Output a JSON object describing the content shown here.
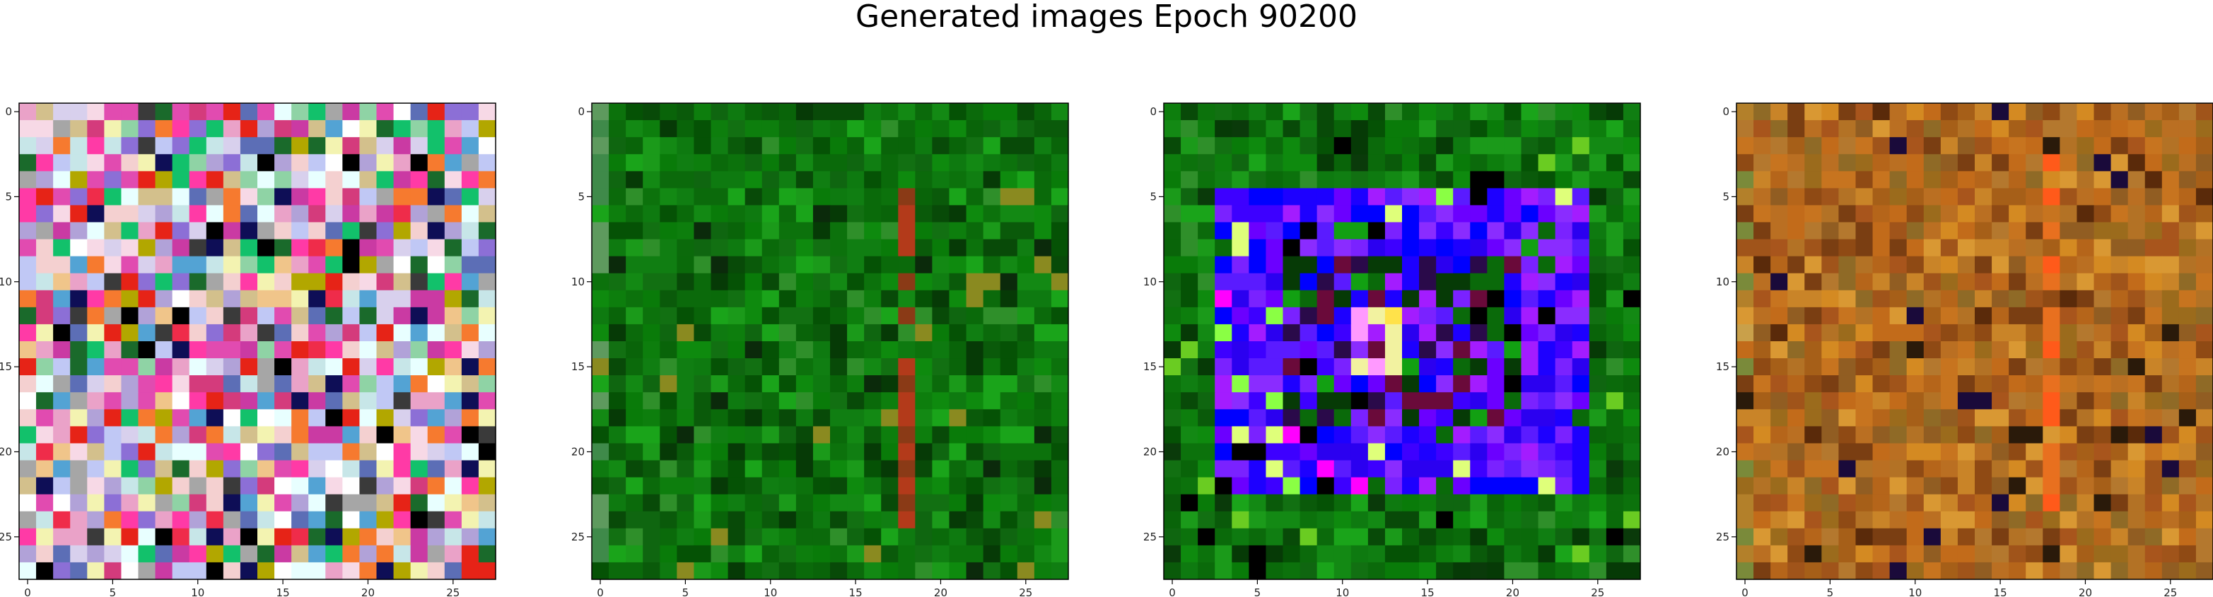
{
  "figure": {
    "title": "Generated images Epoch 90200"
  },
  "palettes": {
    "pastel": [
      "#f7d9e6",
      "#c7e6e8",
      "#d3c08c",
      "#8c6fd6",
      "#e14bb0",
      "#f3f3b1",
      "#5c6eb6",
      "#d8d0ed",
      "#eaa2c8",
      "#ef2c4a",
      "#a6a6a6",
      "#e62317",
      "#ffffff",
      "#0e0e56",
      "#b2a700",
      "#3a3a3a",
      "#8fd3a5",
      "#f0c58a",
      "#53a3d4",
      "#ca3aa3",
      "#f67a2f",
      "#e8ffff",
      "#000000",
      "#12c16b",
      "#d43b7c",
      "#1a6a2b",
      "#b1a2d8",
      "#ff3aa6",
      "#c0c8f5",
      "#f4d0d0"
    ],
    "green": [
      "#0b6a0b",
      "#096409",
      "#0e7a10",
      "#0a5a0a",
      "#107e12",
      "#055205",
      "#138914",
      "#0c720c",
      "#1b9a1a",
      "#084a08",
      "#127012",
      "#0a6a0a",
      "#0d7e0d",
      "#0f6610",
      "#1aa41a",
      "#063a06",
      "#097b09",
      "#0e8a0e",
      "#2f8f2a"
    ],
    "purple": [
      "#1d00ff",
      "#0000ff",
      "#6b00ff",
      "#5a1bff",
      "#8a2cff",
      "#3d00ff",
      "#7a22ff",
      "#2b00f0",
      "#a31cff"
    ],
    "orange": [
      "#b5651a",
      "#a0541a",
      "#c7741f",
      "#8f4a14",
      "#d48a22",
      "#9b6b1c",
      "#b37225",
      "#a65f18",
      "#c98428",
      "#7a3e12",
      "#b4782e",
      "#8f6a26",
      "#a8551c",
      "#c26b1a",
      "#915d22",
      "#ba6f22",
      "#d99833"
    ]
  },
  "chart_data": [
    {
      "type": "heatmap",
      "pattern": "pastel-noise",
      "grid": {
        "rows": 28,
        "cols": 28
      },
      "xlim": [
        -0.5,
        27.5
      ],
      "ylim": [
        27.5,
        -0.5
      ],
      "xticks": [
        0,
        5,
        10,
        15,
        20,
        25
      ],
      "yticks": [
        0,
        5,
        10,
        15,
        20,
        25
      ]
    },
    {
      "type": "heatmap",
      "pattern": "green-with-red-stripe",
      "grid": {
        "rows": 28,
        "cols": 28
      },
      "xlim": [
        -0.5,
        27.5
      ],
      "ylim": [
        27.5,
        -0.5
      ],
      "xticks": [
        0,
        5,
        10,
        15,
        20,
        25
      ],
      "yticks": [
        0,
        5,
        10,
        15,
        20,
        25
      ]
    },
    {
      "type": "heatmap",
      "pattern": "green-with-blue-purple-ring",
      "grid": {
        "rows": 28,
        "cols": 28
      },
      "xlim": [
        -0.5,
        27.5
      ],
      "ylim": [
        27.5,
        -0.5
      ],
      "xticks": [
        0,
        5,
        10,
        15,
        20,
        25
      ],
      "yticks": [
        0,
        5,
        10,
        15,
        20,
        25
      ]
    },
    {
      "type": "heatmap",
      "pattern": "orange-brown-noise",
      "grid": {
        "rows": 28,
        "cols": 28
      },
      "xlim": [
        -0.5,
        27.5
      ],
      "ylim": [
        27.5,
        -0.5
      ],
      "xticks": [
        0,
        5,
        10,
        15,
        20,
        25
      ],
      "yticks": [
        0,
        5,
        10,
        15,
        20,
        25
      ]
    }
  ]
}
